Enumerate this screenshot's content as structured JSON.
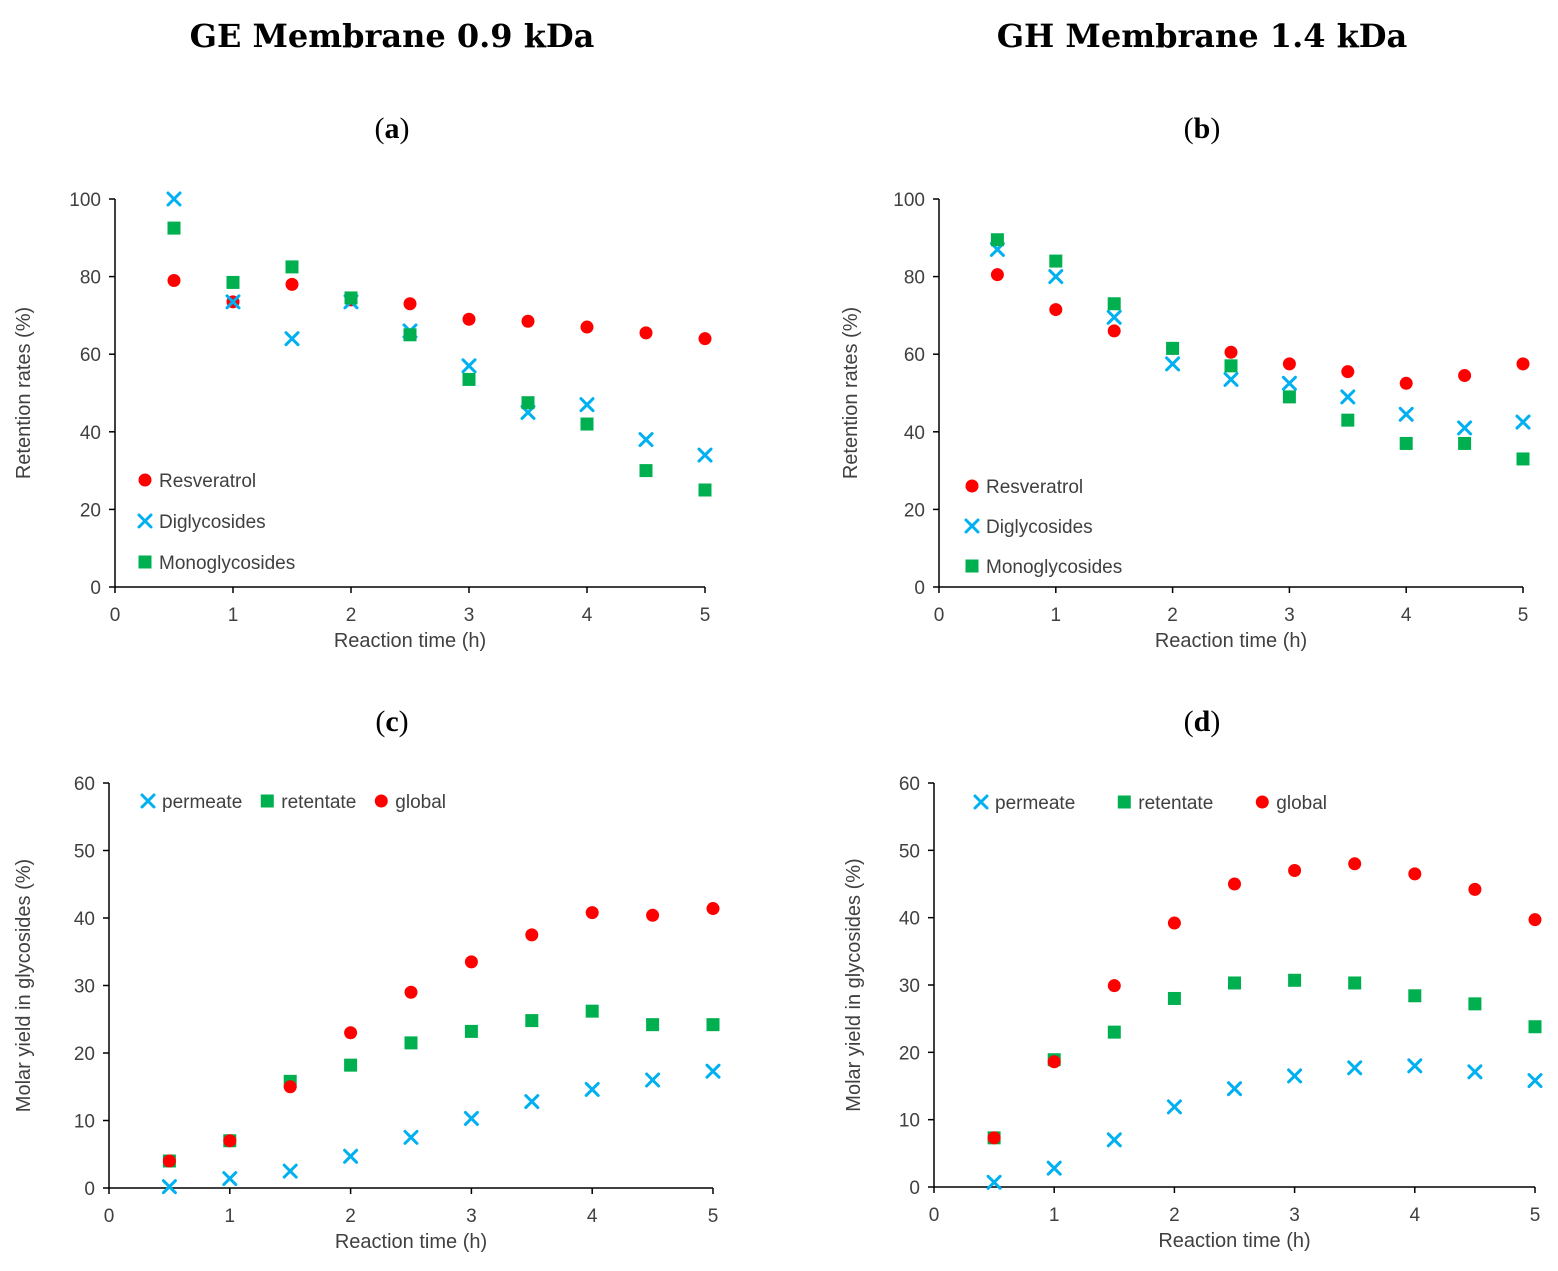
{
  "column_titles": [
    "GE Membrane 0.9 kDa",
    "GH Membrane 1.4 kDa"
  ],
  "colors": {
    "resveratrol": "#ff0000",
    "diglycosides": "#00b0f0",
    "monoglycosides": "#00b050",
    "global": "#ff0000",
    "permeate": "#00b0f0",
    "retentate": "#00b050"
  },
  "chart_data": [
    {
      "id": "a",
      "panel_label": "a",
      "type": "scatter",
      "xlabel": "Reaction time (h)",
      "ylabel": "Retention rates (%)",
      "xlim": [
        0,
        5
      ],
      "ylim": [
        0,
        100
      ],
      "xticks": [
        0,
        1,
        2,
        3,
        4,
        5
      ],
      "yticks": [
        0,
        20,
        40,
        60,
        80,
        100
      ],
      "legend_position": "bottom-left",
      "legend_layout": "vertical",
      "x": [
        0.5,
        1,
        1.5,
        2,
        2.5,
        3,
        3.5,
        4,
        4.5,
        5
      ],
      "series": [
        {
          "name": "Resveratrol",
          "marker": "circle",
          "color_key": "resveratrol",
          "values": [
            79,
            73.5,
            78,
            74,
            73,
            69,
            68.5,
            67,
            65.5,
            64
          ]
        },
        {
          "name": "Diglycosides",
          "marker": "x",
          "color_key": "diglycosides",
          "values": [
            100,
            73.5,
            64,
            73.5,
            66,
            57,
            45,
            47,
            38,
            34
          ]
        },
        {
          "name": "Monoglycosides",
          "marker": "square",
          "color_key": "monoglycosides",
          "values": [
            92.5,
            78.5,
            82.5,
            74.5,
            65,
            53.5,
            47.5,
            42,
            30,
            25
          ]
        }
      ]
    },
    {
      "id": "b",
      "panel_label": "b",
      "type": "scatter",
      "xlabel": "Reaction time (h)",
      "ylabel": "Retention rates (%)",
      "xlim": [
        0,
        5
      ],
      "ylim": [
        0,
        100
      ],
      "xticks": [
        0,
        1,
        2,
        3,
        4,
        5
      ],
      "yticks": [
        0,
        20,
        40,
        60,
        80,
        100
      ],
      "legend_position": "bottom-left",
      "legend_layout": "vertical",
      "x": [
        0.5,
        1,
        1.5,
        2,
        2.5,
        3,
        3.5,
        4,
        4.5,
        5
      ],
      "series": [
        {
          "name": "Resveratrol",
          "marker": "circle",
          "color_key": "resveratrol",
          "values": [
            80.5,
            71.5,
            66,
            61.5,
            60.5,
            57.5,
            55.5,
            52.5,
            54.5,
            57.5
          ]
        },
        {
          "name": "Diglycosides",
          "marker": "x",
          "color_key": "diglycosides",
          "values": [
            87,
            80,
            69.5,
            57.5,
            53.5,
            52.5,
            49,
            44.5,
            41,
            42.5
          ]
        },
        {
          "name": "Monoglycosides",
          "marker": "square",
          "color_key": "monoglycosides",
          "values": [
            89.5,
            84,
            73,
            61.5,
            57,
            49,
            43,
            37,
            37,
            33
          ]
        }
      ]
    },
    {
      "id": "c",
      "panel_label": "c",
      "type": "scatter",
      "xlabel": "Reaction time (h)",
      "ylabel": "Molar yield in glycosides (%)",
      "xlim": [
        0,
        5
      ],
      "ylim": [
        0,
        60
      ],
      "xticks": [
        0,
        1,
        2,
        3,
        4,
        5
      ],
      "yticks": [
        0,
        10,
        20,
        30,
        40,
        50,
        60
      ],
      "legend_position": "top-left",
      "legend_layout": "horizontal",
      "x": [
        0.5,
        1,
        1.5,
        2,
        2.5,
        3,
        3.5,
        4,
        4.5,
        5
      ],
      "series": [
        {
          "name": "permeate",
          "marker": "x",
          "color_key": "permeate",
          "values": [
            0.2,
            1.4,
            2.5,
            4.7,
            7.5,
            10.3,
            12.8,
            14.6,
            16,
            17.3
          ]
        },
        {
          "name": "retentate",
          "marker": "square",
          "color_key": "retentate",
          "values": [
            4,
            7,
            15.8,
            18.2,
            21.5,
            23.2,
            24.8,
            26.2,
            24.2,
            24.2
          ]
        },
        {
          "name": "global",
          "marker": "circle",
          "color_key": "global",
          "values": [
            4,
            7,
            15,
            23,
            29,
            33.5,
            37.5,
            40.8,
            40.4,
            41.4
          ]
        }
      ]
    },
    {
      "id": "d",
      "panel_label": "d",
      "type": "scatter",
      "xlabel": "Reaction time (h)",
      "ylabel": "Molar yield in glycosides (%)",
      "xlim": [
        0,
        5
      ],
      "ylim": [
        0,
        60
      ],
      "xticks": [
        0,
        1,
        2,
        3,
        4,
        5
      ],
      "yticks": [
        0,
        10,
        20,
        30,
        40,
        50,
        60
      ],
      "legend_position": "top-left",
      "legend_layout": "horizontal",
      "x": [
        0.5,
        1,
        1.5,
        2,
        2.5,
        3,
        3.5,
        4,
        4.5,
        5
      ],
      "series": [
        {
          "name": "permeate",
          "marker": "x",
          "color_key": "permeate",
          "values": [
            0.7,
            2.8,
            7,
            11.9,
            14.6,
            16.5,
            17.7,
            18,
            17.1,
            15.8
          ]
        },
        {
          "name": "retentate",
          "marker": "square",
          "color_key": "retentate",
          "values": [
            7.3,
            18.9,
            23,
            28,
            30.3,
            30.7,
            30.3,
            28.4,
            27.2,
            23.8
          ]
        },
        {
          "name": "global",
          "marker": "circle",
          "color_key": "global",
          "values": [
            7.3,
            18.6,
            29.9,
            39.2,
            45,
            47,
            48,
            46.5,
            44.2,
            39.7
          ]
        }
      ]
    }
  ]
}
